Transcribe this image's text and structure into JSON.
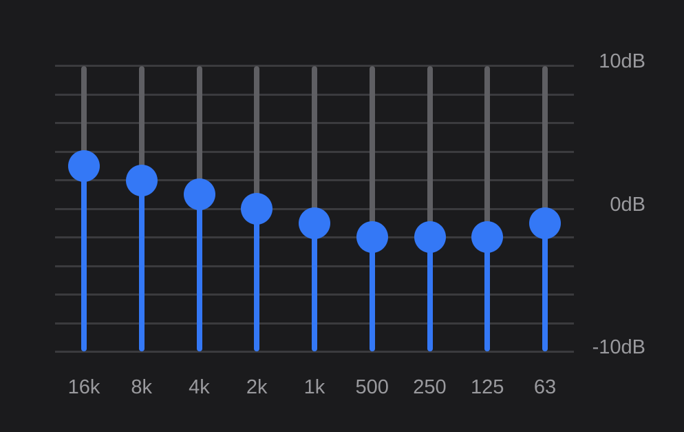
{
  "equalizer": {
    "scale": {
      "max_db": 10,
      "min_db": -10,
      "labels": {
        "top": "10dB",
        "middle": "0dB",
        "bottom": "-10dB"
      }
    },
    "bands": [
      {
        "label": "16k",
        "gain_db": 3
      },
      {
        "label": "8k",
        "gain_db": 2
      },
      {
        "label": "4k",
        "gain_db": 1
      },
      {
        "label": "2k",
        "gain_db": 0
      },
      {
        "label": "1k",
        "gain_db": -1
      },
      {
        "label": "500",
        "gain_db": -2
      },
      {
        "label": "250",
        "gain_db": -2
      },
      {
        "label": "125",
        "gain_db": -2
      },
      {
        "label": "63",
        "gain_db": -1
      }
    ],
    "colors": {
      "background": "#1b1b1d",
      "accent": "#3478f6",
      "track": "#5f5f63",
      "gridline": "#3b3b3e",
      "label": "#9a9a9e"
    }
  }
}
